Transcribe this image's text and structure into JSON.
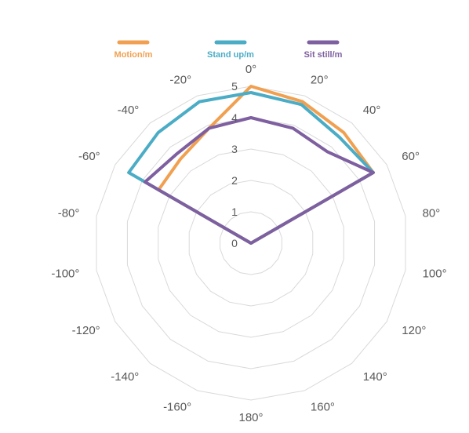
{
  "chart_data": {
    "type": "radar",
    "angles": [
      0,
      20,
      40,
      60,
      80,
      100,
      120,
      140,
      160,
      180,
      -160,
      -140,
      -120,
      -100,
      -80,
      -60,
      -40,
      -20
    ],
    "angle_labels": [
      "0°",
      "20°",
      "40°",
      "60°",
      "80°",
      "100°",
      "120°",
      "140°",
      "160°",
      "180°",
      "-160°",
      "-140°",
      "-120°",
      "-100°",
      "-80°",
      "-60°",
      "-40°",
      "-20°"
    ],
    "radial_ticks": [
      "0",
      "1",
      "2",
      "3",
      "4",
      "5"
    ],
    "rlim": [
      0,
      5
    ],
    "grid": true,
    "legend_position": "top",
    "series": [
      {
        "name": "Motion/m",
        "color": "#f0a050",
        "points": [
          [
            -60,
            3.4
          ],
          [
            -40,
            3.5
          ],
          [
            -20,
            3.9
          ],
          [
            0,
            5.0
          ],
          [
            20,
            4.8
          ],
          [
            40,
            4.6
          ],
          [
            60,
            4.5
          ],
          [
            180,
            0
          ]
        ]
      },
      {
        "name": "Stand up/m",
        "color": "#4bacc6",
        "points": [
          [
            -60,
            4.5
          ],
          [
            -40,
            4.6
          ],
          [
            -20,
            4.8
          ],
          [
            0,
            4.8
          ],
          [
            20,
            4.7
          ],
          [
            40,
            4.4
          ],
          [
            60,
            4.5
          ],
          [
            180,
            0
          ]
        ]
      },
      {
        "name": "Sit still/m",
        "color": "#7e5fa0",
        "points": [
          [
            -60,
            3.9
          ],
          [
            -40,
            3.7
          ],
          [
            -20,
            3.9
          ],
          [
            0,
            4.0
          ],
          [
            20,
            3.9
          ],
          [
            40,
            3.8
          ],
          [
            60,
            4.5
          ],
          [
            180,
            0
          ]
        ]
      }
    ]
  }
}
